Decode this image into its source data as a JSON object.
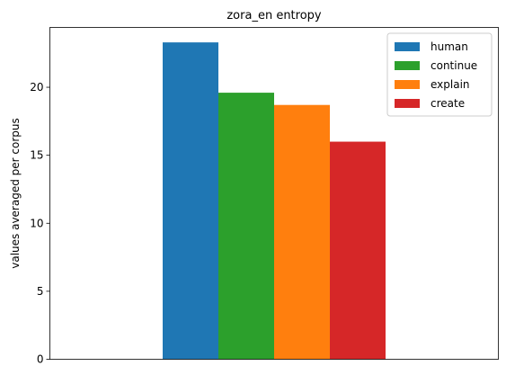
{
  "chart_data": {
    "type": "bar",
    "title": "zora_en entropy",
    "xlabel": "",
    "ylabel": "values averaged per corpus",
    "categories": [
      ""
    ],
    "series": [
      {
        "name": "human",
        "values": [
          23.3
        ],
        "color": "#1f77b4"
      },
      {
        "name": "continue",
        "values": [
          19.6
        ],
        "color": "#2ca02c"
      },
      {
        "name": "explain",
        "values": [
          18.7
        ],
        "color": "#ff7f0e"
      },
      {
        "name": "create",
        "values": [
          16.0
        ],
        "color": "#d62728"
      }
    ],
    "ylim": [
      0,
      24.4
    ],
    "yticks": [
      "0",
      "5",
      "10",
      "15",
      "20"
    ],
    "ytick_values": [
      0,
      5,
      10,
      15,
      20
    ],
    "grid": false,
    "legend_position": "top-right"
  }
}
